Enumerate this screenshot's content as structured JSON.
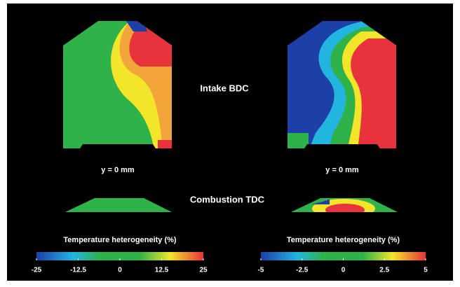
{
  "row_labels": [
    "Intake BDC",
    "Combustion TDC"
  ],
  "panels": [
    {
      "label": "y = 0 mm"
    },
    {
      "label": "y = 0 mm"
    }
  ],
  "colorbars": [
    {
      "title": "Temperature heterogeneity (%)",
      "lim": [
        -25,
        25
      ],
      "ticks": [
        -25,
        -12.5,
        0,
        12.5,
        25
      ]
    },
    {
      "title": "Temperature heterogeneity (%)",
      "lim": [
        -5,
        5
      ],
      "ticks": [
        -5,
        -2.5,
        0,
        2.5,
        5
      ]
    }
  ]
}
